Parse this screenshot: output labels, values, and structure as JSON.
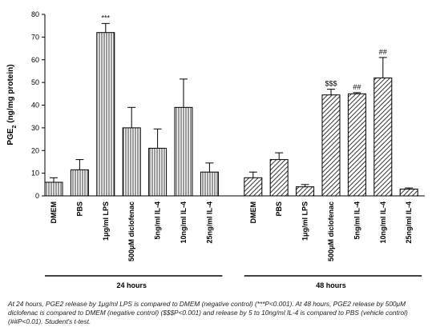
{
  "chart_data": {
    "type": "bar",
    "y_label": {
      "main": "PGE",
      "sub": "2",
      "rest": " (ng/mg protein)"
    },
    "ylim": [
      0,
      80
    ],
    "yticks": [
      0,
      10,
      20,
      30,
      40,
      50,
      60,
      70,
      80
    ],
    "color": "#000000",
    "groups": [
      {
        "label": "24 hours",
        "hatch": "vertical",
        "categories": [
          "DMEM",
          "PBS",
          "1μg/ml LPS",
          "500μM diclofenac",
          "5ng/ml IL-4",
          "10ng/ml IL-4",
          "25ng/ml IL-4"
        ],
        "values": [
          6,
          11.5,
          72,
          30,
          21,
          39,
          10.5
        ],
        "errors": [
          2,
          4.5,
          4,
          9,
          8.5,
          12.5,
          4
        ],
        "annotations": [
          null,
          null,
          "***",
          null,
          null,
          null,
          null
        ]
      },
      {
        "label": "48 hours",
        "hatch": "diagonal",
        "categories": [
          "DMEM",
          "PBS",
          "1μg/ml LPS",
          "500μM diclofenac",
          "5ng/ml IL-4",
          "10ng/ml IL-4",
          "25ng/ml IL-4"
        ],
        "values": [
          8,
          16,
          4,
          44.5,
          45,
          52,
          3
        ],
        "errors": [
          2.5,
          3,
          1,
          2.5,
          0.5,
          9,
          0.5
        ],
        "annotations": [
          null,
          null,
          null,
          "$$$",
          "##",
          "##",
          null
        ]
      }
    ],
    "caption": "At 24 hours, PGE2 release by 1μg/ml LPS is compared to DMEM (negative control) (***P<0.001). At 48 hours, PGE2 release by 500μM diclofenac is compared to DMEM (negative control) ($$$P<0.001) and release by 5 to 10ng/ml IL-4 is compared to PBS (vehicle control) (##P<0.01). Student's t-test."
  }
}
